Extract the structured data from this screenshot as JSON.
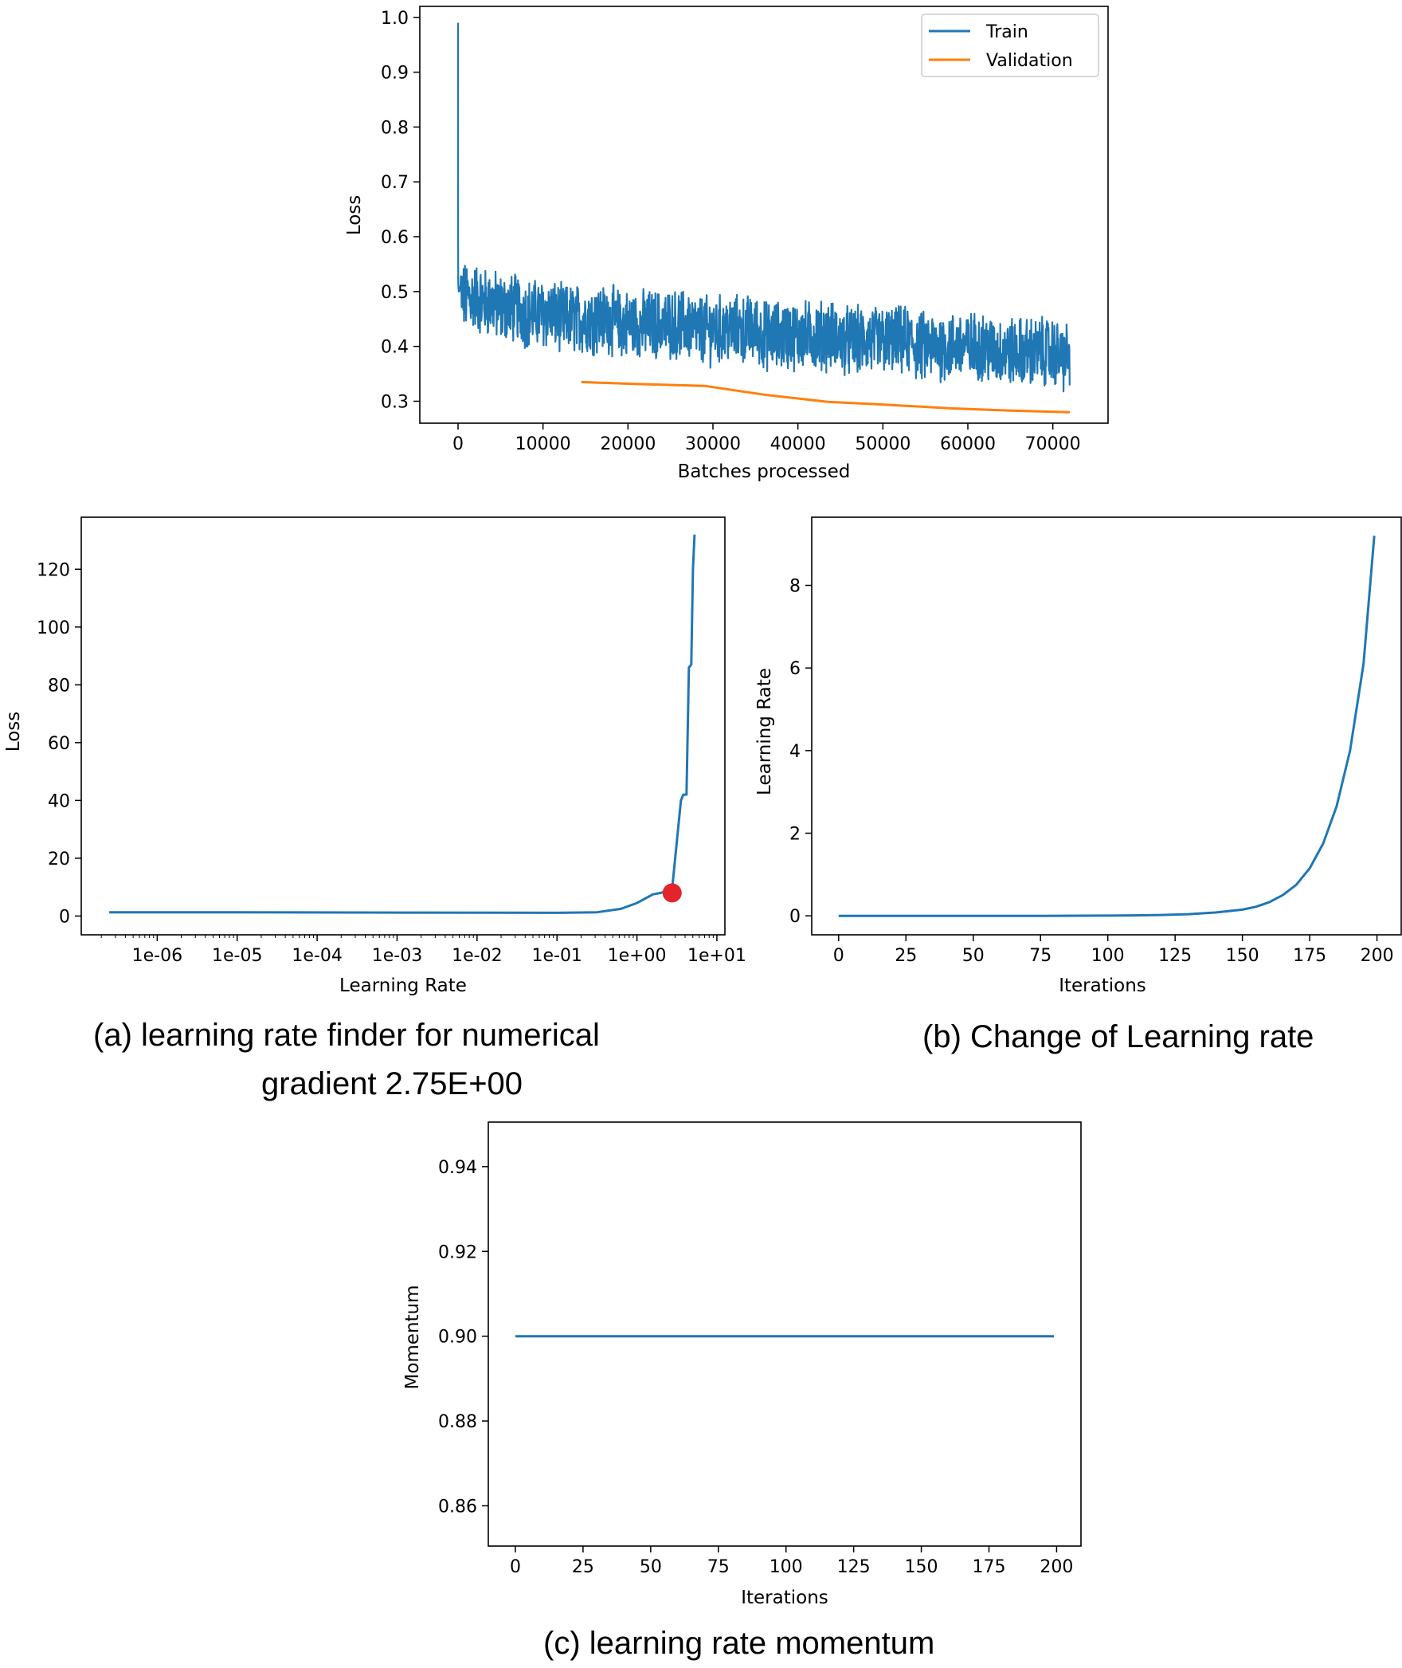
{
  "chart_data": [
    {
      "id": "top",
      "type": "line",
      "xlabel": "Batches processed",
      "ylabel": "Loss",
      "xlim": [
        -4500,
        76500
      ],
      "ylim": [
        0.26,
        1.02
      ],
      "xticks": [
        0,
        10000,
        20000,
        30000,
        40000,
        50000,
        60000,
        70000
      ],
      "xtick_labels": [
        "0",
        "10000",
        "20000",
        "30000",
        "40000",
        "50000",
        "60000",
        "70000"
      ],
      "yticks": [
        0.3,
        0.4,
        0.5,
        0.6,
        0.7,
        0.8,
        0.9,
        1.0
      ],
      "ytick_labels": [
        "0.3",
        "0.4",
        "0.5",
        "0.6",
        "0.7",
        "0.8",
        "0.9",
        "1.0"
      ],
      "legend_position": "top-right",
      "series": [
        {
          "name": "Train",
          "color": "#1f77b4",
          "x": [
            0,
            10,
            20,
            40,
            80,
            150,
            300,
            600,
            1000,
            2000,
            3000,
            4000,
            5000,
            6000,
            7000,
            8000,
            9000,
            10000,
            11000,
            12000,
            13000,
            14000,
            15000,
            16000,
            17000,
            18000,
            19000,
            20000,
            21000,
            22000,
            23000,
            24000,
            25000,
            26000,
            27000,
            28000,
            29000,
            30000,
            31000,
            32000,
            33000,
            34000,
            35000,
            36000,
            37000,
            38000,
            39000,
            40000,
            41000,
            42000,
            43000,
            44000,
            45000,
            46000,
            47000,
            48000,
            49000,
            50000,
            51000,
            52000,
            53000,
            54000,
            55000,
            56000,
            57000,
            58000,
            59000,
            60000,
            61000,
            62000,
            63000,
            64000,
            65000,
            66000,
            67000,
            68000,
            69000,
            70000,
            71000,
            72000
          ],
          "values": [
            0.99,
            0.6,
            0.52,
            0.51,
            0.5,
            0.5,
            0.5,
            0.49,
            0.49,
            0.49,
            0.48,
            0.48,
            0.47,
            0.47,
            0.47,
            0.46,
            0.46,
            0.46,
            0.46,
            0.45,
            0.45,
            0.45,
            0.45,
            0.45,
            0.45,
            0.45,
            0.44,
            0.44,
            0.44,
            0.44,
            0.44,
            0.44,
            0.44,
            0.44,
            0.44,
            0.43,
            0.43,
            0.43,
            0.43,
            0.43,
            0.43,
            0.43,
            0.43,
            0.42,
            0.42,
            0.42,
            0.42,
            0.42,
            0.42,
            0.42,
            0.42,
            0.42,
            0.41,
            0.41,
            0.41,
            0.41,
            0.41,
            0.41,
            0.41,
            0.41,
            0.41,
            0.4,
            0.4,
            0.4,
            0.4,
            0.4,
            0.4,
            0.4,
            0.4,
            0.4,
            0.39,
            0.39,
            0.39,
            0.39,
            0.39,
            0.39,
            0.39,
            0.39,
            0.38,
            0.38
          ],
          "noise_band": 0.055
        },
        {
          "name": "Validation",
          "color": "#ff7f0e",
          "x": [
            14500,
            20000,
            29000,
            36000,
            43500,
            50000,
            58000,
            65000,
            72000
          ],
          "values": [
            0.335,
            0.332,
            0.328,
            0.312,
            0.299,
            0.294,
            0.287,
            0.283,
            0.28
          ]
        }
      ]
    },
    {
      "id": "a",
      "type": "line",
      "xscale": "log",
      "xlabel": "Learning Rate",
      "ylabel": "Loss",
      "xlim_log10": [
        -6.95,
        1.1
      ],
      "ylim": [
        -6.5,
        138
      ],
      "xticks_log10": [
        -6,
        -5,
        -4,
        -3,
        -2,
        -1,
        0,
        1
      ],
      "xtick_labels": [
        "1e-06",
        "1e-05",
        "1e-04",
        "1e-03",
        "1e-02",
        "1e-01",
        "1e+00",
        "1e+01"
      ],
      "yticks": [
        0,
        20,
        40,
        60,
        80,
        100,
        120
      ],
      "ytick_labels": [
        "0",
        "20",
        "40",
        "60",
        "80",
        "100",
        "120"
      ],
      "series": [
        {
          "name": "loss",
          "color": "#1f77b4",
          "x_log10": [
            -6.6,
            -5,
            -3,
            -1,
            -0.5,
            -0.2,
            0,
            0.2,
            0.3,
            0.44,
            0.55,
            0.58,
            0.62,
            0.65,
            0.68,
            0.7,
            0.72
          ],
          "values": [
            1.3,
            1.3,
            1.2,
            1.1,
            1.3,
            2.5,
            4.5,
            7.5,
            8.0,
            9.5,
            40,
            42,
            42,
            86,
            87,
            120,
            132
          ]
        }
      ],
      "marker": {
        "x_log10": 0.44,
        "y": 8,
        "color": "#e3242b"
      }
    },
    {
      "id": "b",
      "type": "line",
      "xlabel": "Iterations",
      "ylabel": "Learning Rate",
      "xlim": [
        -10,
        209
      ],
      "ylim": [
        -0.46,
        9.65
      ],
      "xticks": [
        0,
        25,
        50,
        75,
        100,
        125,
        150,
        175,
        200
      ],
      "xtick_labels": [
        "0",
        "25",
        "50",
        "75",
        "100",
        "125",
        "150",
        "175",
        "200"
      ],
      "yticks": [
        0,
        2,
        4,
        6,
        8
      ],
      "ytick_labels": [
        "0",
        "2",
        "4",
        "6",
        "8"
      ],
      "series": [
        {
          "name": "learning rate",
          "color": "#1f77b4",
          "x": [
            0,
            25,
            50,
            75,
            100,
            110,
            120,
            130,
            140,
            150,
            155,
            160,
            165,
            170,
            175,
            180,
            185,
            190,
            195,
            199
          ],
          "values": [
            0.0,
            0.0,
            0.0,
            0.0,
            0.005,
            0.01,
            0.02,
            0.04,
            0.08,
            0.15,
            0.22,
            0.33,
            0.5,
            0.75,
            1.15,
            1.75,
            2.65,
            4.0,
            6.1,
            9.2
          ]
        }
      ]
    },
    {
      "id": "c",
      "type": "line",
      "xlabel": "Iterations",
      "ylabel": "Momentum",
      "xlim": [
        -10,
        209
      ],
      "ylim": [
        0.8505,
        0.9505
      ],
      "xticks": [
        0,
        25,
        50,
        75,
        100,
        125,
        150,
        175,
        200
      ],
      "xtick_labels": [
        "0",
        "25",
        "50",
        "75",
        "100",
        "125",
        "150",
        "175",
        "200"
      ],
      "yticks": [
        0.86,
        0.88,
        0.9,
        0.92,
        0.94
      ],
      "ytick_labels": [
        "0.86",
        "0.88",
        "0.90",
        "0.92",
        "0.94"
      ],
      "series": [
        {
          "name": "momentum",
          "color": "#1f77b4",
          "x": [
            0,
            199
          ],
          "values": [
            0.9,
            0.9
          ]
        }
      ]
    }
  ],
  "captions": {
    "a_line1": "(a)  learning rate finder for numerical",
    "a_line2": "gradient 2.75E+00",
    "b": "(b)  Change of Learning rate",
    "c": "(c)  learning rate momentum"
  }
}
